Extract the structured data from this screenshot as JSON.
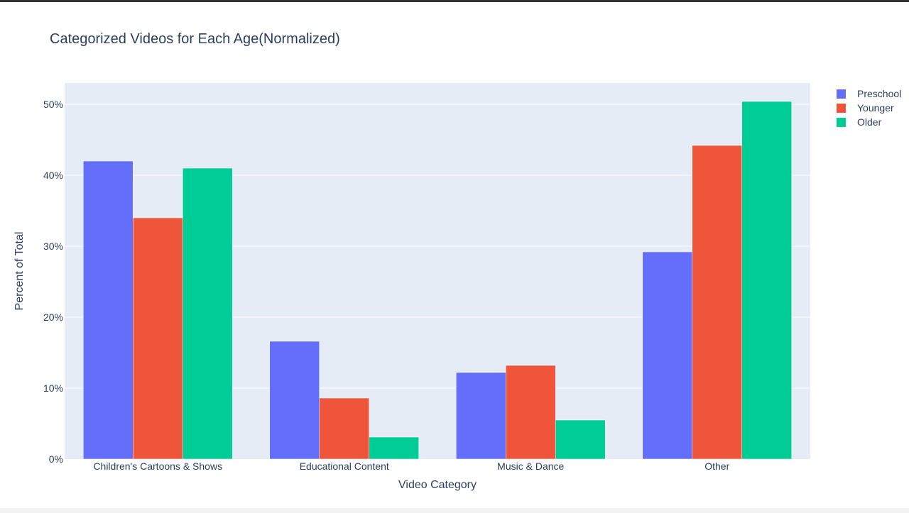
{
  "chart_data": {
    "type": "bar",
    "title": "Categorized Videos for Each Age(Normalized)",
    "xlabel": "Video Category",
    "ylabel": "Percent of Total",
    "categories": [
      "Children's Cartoons & Shows",
      "Educational Content",
      "Music & Dance",
      "Other"
    ],
    "series": [
      {
        "name": "Preschool",
        "color": "#636efa",
        "values": [
          42.0,
          16.6,
          12.2,
          29.2
        ]
      },
      {
        "name": "Younger",
        "color": "#ef553b",
        "values": [
          34.0,
          8.6,
          13.2,
          44.2
        ]
      },
      {
        "name": "Older",
        "color": "#00cc96",
        "values": [
          41.0,
          3.1,
          5.5,
          50.4
        ]
      }
    ],
    "ylim": [
      0,
      53
    ],
    "yticks": [
      0,
      10,
      20,
      30,
      40,
      50
    ],
    "ytick_labels": [
      "0%",
      "10%",
      "20%",
      "30%",
      "40%",
      "50%"
    ],
    "grid": true,
    "legend_position": "top-right",
    "plot_background": "#e5ecf6"
  }
}
